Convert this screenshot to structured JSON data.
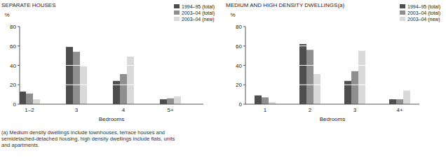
{
  "chart_data": [
    {
      "type": "bar",
      "title": "SEPARATE HOUSES",
      "y_label": "%",
      "x_label": "Bedrooms",
      "categories": [
        "1–2",
        "3",
        "4",
        "5+"
      ],
      "series": [
        {
          "name": "1994–95 (total)",
          "color": "#4d4d4d",
          "values": [
            13,
            59,
            24,
            5
          ]
        },
        {
          "name": "2003–04 (total)",
          "color": "#8f8f8f",
          "values": [
            11,
            54,
            31,
            6
          ]
        },
        {
          "name": "2003–04 (new)",
          "color": "#d9d9d9",
          "values": [
            5,
            39,
            49,
            8
          ]
        }
      ],
      "ylim": [
        0,
        80
      ],
      "yticks": [
        0,
        20,
        40,
        60,
        80
      ],
      "grid": true,
      "legend": "top-right"
    },
    {
      "type": "bar",
      "title": "MEDIUM AND HIGH DENSITY DWELLINGS(a)",
      "y_label": "%",
      "x_label": "Bedrooms",
      "categories": [
        "1",
        "2",
        "3",
        "4+"
      ],
      "series": [
        {
          "name": "1994–95 (total)",
          "color": "#4d4d4d",
          "values": [
            9,
            62,
            24,
            5
          ]
        },
        {
          "name": "2003–04 (total)",
          "color": "#8f8f8f",
          "values": [
            7,
            56,
            34,
            5
          ]
        },
        {
          "name": "2003–04 (new)",
          "color": "#d9d9d9",
          "values": [
            2,
            31,
            55,
            14
          ]
        }
      ],
      "ylim": [
        0,
        80
      ],
      "yticks": [
        0,
        20,
        40,
        60,
        80
      ],
      "grid": true,
      "legend": "top-right"
    }
  ],
  "footnote": [
    "(a) Medium density dwellings include townhouses, terrace houses and",
    "semidetached-detached housing, high density dwellings include flats, units",
    "and apartments."
  ]
}
